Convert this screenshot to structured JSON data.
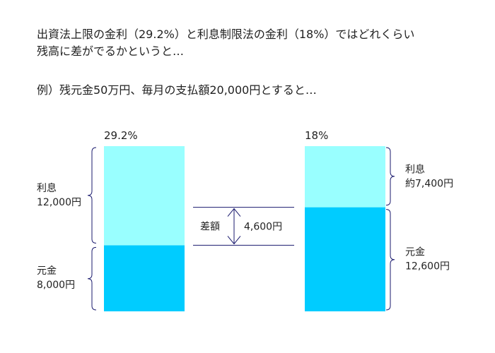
{
  "intro": {
    "line1": "出資法上限の金利（29.2%）と利息制限法の金利（18%）ではどれくらい",
    "line2": "残高に差がでるかというと…",
    "example": "例）残元金50万円、毎月の支払額20,000円とすると…"
  },
  "chart_data": {
    "type": "bar",
    "stacked": true,
    "categories": [
      "29.2%",
      "18%"
    ],
    "series": [
      {
        "name": "元金",
        "values": [
          8000,
          12600
        ],
        "color": "#00ccff"
      },
      {
        "name": "利息",
        "values": [
          12000,
          7400
        ],
        "color": "#99ffff"
      }
    ],
    "ylim": [
      0,
      20000
    ],
    "bar_labels": [
      {
        "interest_name": "利息",
        "interest_value": "12,000円",
        "principal_name": "元金",
        "principal_value": "8,000円"
      },
      {
        "interest_name": "利息",
        "interest_value": "約7,400円",
        "principal_name": "元金",
        "principal_value": "12,600円"
      }
    ],
    "difference": {
      "label": "差額",
      "value": "4,600円",
      "amount": 4600
    }
  }
}
